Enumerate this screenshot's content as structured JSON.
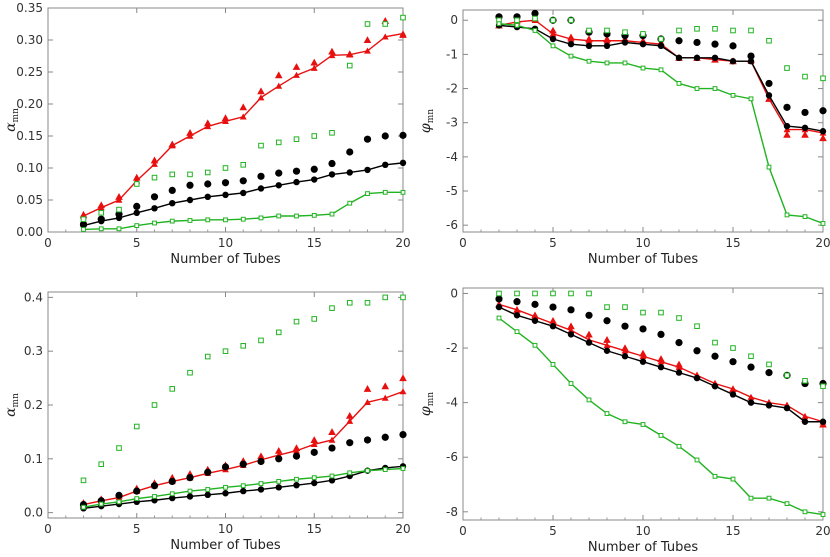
{
  "colors": {
    "red": "#e8100f",
    "black": "#000000",
    "green": "#22b322"
  },
  "chart_data": [
    {
      "type": "scatter",
      "panel": "top-left",
      "xlabel": "Number of Tubes",
      "ylabel_main": "α",
      "ylabel_sub": "mn",
      "xlim": [
        0,
        20
      ],
      "ylim": [
        0,
        0.35
      ],
      "xticks": [
        "0",
        "5",
        "10",
        "15",
        "20"
      ],
      "yticks": [
        "0.00",
        "0.05",
        "0.10",
        "0.15",
        "0.20",
        "0.25",
        "0.30",
        "0.35"
      ],
      "x": [
        2,
        3,
        4,
        5,
        6,
        7,
        8,
        9,
        10,
        11,
        12,
        13,
        14,
        15,
        16,
        17,
        18,
        19,
        20
      ],
      "series": [
        {
          "color": "red",
          "marker": "triangle",
          "kind": "points",
          "values": [
            0.027,
            0.042,
            0.055,
            0.085,
            0.112,
            0.137,
            0.155,
            0.17,
            0.178,
            0.195,
            0.22,
            0.245,
            0.258,
            0.265,
            0.282,
            0.278,
            0.3,
            0.33,
            0.308
          ]
        },
        {
          "color": "red",
          "marker": "triangle",
          "kind": "line",
          "values": [
            0.025,
            0.038,
            0.05,
            0.08,
            0.106,
            0.135,
            0.15,
            0.165,
            0.173,
            0.18,
            0.21,
            0.228,
            0.245,
            0.256,
            0.276,
            0.277,
            0.283,
            0.305,
            0.31
          ]
        },
        {
          "color": "black",
          "marker": "circle",
          "kind": "points",
          "values": [
            0.012,
            0.02,
            0.028,
            0.04,
            0.055,
            0.065,
            0.073,
            0.075,
            0.077,
            0.08,
            0.087,
            0.092,
            0.095,
            0.098,
            0.107,
            0.125,
            0.145,
            0.15,
            0.151
          ]
        },
        {
          "color": "black",
          "marker": "circle",
          "kind": "line",
          "values": [
            0.01,
            0.017,
            0.022,
            0.03,
            0.037,
            0.045,
            0.05,
            0.055,
            0.058,
            0.061,
            0.068,
            0.073,
            0.078,
            0.082,
            0.09,
            0.093,
            0.097,
            0.105,
            0.108
          ]
        },
        {
          "color": "green",
          "marker": "square",
          "kind": "points",
          "values": [
            0.02,
            0.03,
            0.035,
            0.075,
            0.085,
            0.09,
            0.09,
            0.093,
            0.1,
            0.105,
            0.135,
            0.14,
            0.145,
            0.15,
            0.155,
            0.26,
            0.325,
            0.325,
            0.335
          ]
        },
        {
          "color": "green",
          "marker": "square",
          "kind": "line",
          "values": [
            0.004,
            0.005,
            0.005,
            0.01,
            0.014,
            0.017,
            0.018,
            0.019,
            0.019,
            0.02,
            0.022,
            0.025,
            0.025,
            0.026,
            0.028,
            0.045,
            0.06,
            0.062,
            0.062
          ]
        }
      ]
    },
    {
      "type": "scatter",
      "panel": "top-right",
      "xlabel": "Number of Tubes",
      "ylabel_main": "φ",
      "ylabel_sub": "mn",
      "xlim": [
        0,
        20
      ],
      "ylim": [
        -6.2,
        0.3
      ],
      "xticks": [
        "0",
        "5",
        "10",
        "15",
        "20"
      ],
      "yticks": [
        "0",
        "-1",
        "-2",
        "-3",
        "-4",
        "-5",
        "-6"
      ],
      "x": [
        2,
        3,
        4,
        5,
        6,
        7,
        8,
        9,
        10,
        11,
        12,
        13,
        14,
        15,
        16,
        17,
        18,
        19,
        20
      ],
      "series": [
        {
          "color": "red",
          "marker": "triangle",
          "kind": "points",
          "values": [
            -0.15,
            0.0,
            0.05,
            -0.3,
            -0.5,
            -0.55,
            -0.55,
            -0.55,
            -0.6,
            -0.65,
            -1.1,
            -1.1,
            -1.15,
            -1.2,
            -1.15,
            -2.3,
            -3.35,
            -3.35,
            -3.45
          ]
        },
        {
          "color": "red",
          "marker": "triangle",
          "kind": "line",
          "values": [
            -0.15,
            -0.05,
            0.0,
            -0.4,
            -0.55,
            -0.6,
            -0.6,
            -0.6,
            -0.65,
            -0.7,
            -1.1,
            -1.1,
            -1.15,
            -1.2,
            -1.2,
            -2.3,
            -3.2,
            -3.2,
            -3.3
          ]
        },
        {
          "color": "black",
          "marker": "circle",
          "kind": "points",
          "values": [
            0.1,
            0.1,
            0.2,
            0.0,
            0.0,
            -0.35,
            -0.4,
            -0.45,
            -0.45,
            -0.55,
            -0.6,
            -0.65,
            -0.7,
            -0.75,
            -1.05,
            -1.85,
            -2.55,
            -2.7,
            -2.65
          ]
        },
        {
          "color": "black",
          "marker": "circle",
          "kind": "line",
          "values": [
            -0.15,
            -0.2,
            -0.25,
            -0.55,
            -0.7,
            -0.75,
            -0.75,
            -0.65,
            -0.7,
            -0.75,
            -1.1,
            -1.1,
            -1.1,
            -1.2,
            -1.2,
            -2.2,
            -3.1,
            -3.15,
            -3.25
          ]
        },
        {
          "color": "green",
          "marker": "square",
          "kind": "points",
          "values": [
            0.0,
            0.0,
            0.05,
            0.0,
            0.0,
            -0.3,
            -0.3,
            -0.35,
            -0.4,
            -0.55,
            -0.3,
            -0.25,
            -0.25,
            -0.3,
            -0.3,
            -0.6,
            -1.4,
            -1.65,
            -1.7
          ]
        },
        {
          "color": "green",
          "marker": "square",
          "kind": "line",
          "values": [
            -0.1,
            -0.15,
            -0.3,
            -0.75,
            -1.05,
            -1.2,
            -1.25,
            -1.25,
            -1.4,
            -1.45,
            -1.85,
            -2.0,
            -2.0,
            -2.2,
            -2.3,
            -4.3,
            -5.7,
            -5.75,
            -5.95
          ]
        }
      ]
    },
    {
      "type": "scatter",
      "panel": "bottom-left",
      "xlabel": "Number of Tubes",
      "ylabel_main": "α",
      "ylabel_sub": "mn",
      "xlim": [
        0,
        20
      ],
      "ylim": [
        -0.01,
        0.41
      ],
      "xticks": [
        "0",
        "5",
        "10",
        "15",
        "20"
      ],
      "yticks": [
        "0.0",
        "0.1",
        "0.2",
        "0.3",
        "0.4"
      ],
      "x": [
        2,
        3,
        4,
        5,
        6,
        7,
        8,
        9,
        10,
        11,
        12,
        13,
        14,
        15,
        16,
        17,
        18,
        19,
        20
      ],
      "series": [
        {
          "color": "red",
          "marker": "triangle",
          "kind": "points",
          "values": [
            0.018,
            0.025,
            0.032,
            0.045,
            0.055,
            0.065,
            0.072,
            0.08,
            0.088,
            0.096,
            0.105,
            0.115,
            0.12,
            0.135,
            0.15,
            0.18,
            0.23,
            0.235,
            0.25
          ]
        },
        {
          "color": "red",
          "marker": "triangle",
          "kind": "line",
          "values": [
            0.015,
            0.022,
            0.028,
            0.04,
            0.05,
            0.058,
            0.065,
            0.073,
            0.08,
            0.088,
            0.098,
            0.107,
            0.115,
            0.127,
            0.135,
            0.17,
            0.205,
            0.213,
            0.225
          ]
        },
        {
          "color": "black",
          "marker": "circle",
          "kind": "points",
          "values": [
            0.015,
            0.022,
            0.032,
            0.04,
            0.05,
            0.058,
            0.065,
            0.075,
            0.085,
            0.09,
            0.095,
            0.1,
            0.105,
            0.112,
            0.12,
            0.13,
            0.135,
            0.14,
            0.145
          ]
        },
        {
          "color": "black",
          "marker": "circle",
          "kind": "line",
          "values": [
            0.008,
            0.012,
            0.016,
            0.02,
            0.023,
            0.027,
            0.03,
            0.033,
            0.036,
            0.04,
            0.043,
            0.047,
            0.051,
            0.055,
            0.06,
            0.068,
            0.078,
            0.083,
            0.086
          ]
        },
        {
          "color": "green",
          "marker": "square",
          "kind": "points",
          "values": [
            0.06,
            0.09,
            0.12,
            0.16,
            0.2,
            0.23,
            0.26,
            0.29,
            0.3,
            0.31,
            0.32,
            0.335,
            0.355,
            0.36,
            0.38,
            0.39,
            0.39,
            0.4,
            0.4
          ]
        },
        {
          "color": "green",
          "marker": "square",
          "kind": "line",
          "values": [
            0.01,
            0.016,
            0.02,
            0.026,
            0.03,
            0.035,
            0.04,
            0.043,
            0.047,
            0.05,
            0.054,
            0.058,
            0.062,
            0.065,
            0.068,
            0.074,
            0.078,
            0.08,
            0.082
          ]
        }
      ]
    },
    {
      "type": "scatter",
      "panel": "bottom-right",
      "xlabel": "Number of Tubes",
      "ylabel_main": "φ",
      "ylabel_sub": "mn",
      "xlim": [
        0,
        20
      ],
      "ylim": [
        -8.3,
        0.2
      ],
      "xticks": [
        "0",
        "5",
        "10",
        "15",
        "20"
      ],
      "yticks": [
        "0",
        "-2",
        "-4",
        "-6",
        "-8"
      ],
      "x": [
        2,
        3,
        4,
        5,
        6,
        7,
        8,
        9,
        10,
        11,
        12,
        13,
        14,
        15,
        16,
        17,
        18,
        19,
        20
      ],
      "series": [
        {
          "color": "red",
          "marker": "triangle",
          "kind": "points",
          "values": [
            -0.4,
            -0.6,
            -0.8,
            -1.0,
            -1.2,
            -1.5,
            -1.7,
            -2.0,
            -2.2,
            -2.4,
            -2.6,
            -3.0,
            -3.3,
            -3.5,
            -3.9,
            -4.0,
            -4.1,
            -4.6,
            -4.8
          ]
        },
        {
          "color": "red",
          "marker": "triangle",
          "kind": "line",
          "values": [
            -0.4,
            -0.6,
            -0.85,
            -1.1,
            -1.35,
            -1.7,
            -1.9,
            -2.1,
            -2.3,
            -2.5,
            -2.7,
            -3.0,
            -3.3,
            -3.5,
            -3.8,
            -4.0,
            -4.1,
            -4.5,
            -4.7
          ]
        },
        {
          "color": "black",
          "marker": "circle",
          "kind": "points",
          "values": [
            -0.2,
            -0.3,
            -0.4,
            -0.5,
            -0.6,
            -0.8,
            -1.0,
            -1.2,
            -1.3,
            -1.5,
            -1.8,
            -2.1,
            -2.3,
            -2.5,
            -2.7,
            -2.9,
            -3.0,
            -3.3,
            -3.3
          ]
        },
        {
          "color": "black",
          "marker": "circle",
          "kind": "line",
          "values": [
            -0.5,
            -0.8,
            -1.0,
            -1.2,
            -1.5,
            -1.8,
            -2.1,
            -2.3,
            -2.5,
            -2.7,
            -2.9,
            -3.1,
            -3.4,
            -3.7,
            -4.0,
            -4.1,
            -4.2,
            -4.7,
            -4.7
          ]
        },
        {
          "color": "green",
          "marker": "square",
          "kind": "points",
          "values": [
            0.0,
            0.0,
            0.0,
            0.0,
            0.0,
            0.0,
            -0.5,
            -0.5,
            -0.7,
            -0.7,
            -0.9,
            -1.2,
            -1.8,
            -2.0,
            -2.3,
            -2.6,
            -3.0,
            -3.2,
            -3.4
          ]
        },
        {
          "color": "green",
          "marker": "square",
          "kind": "line",
          "values": [
            -0.9,
            -1.4,
            -1.9,
            -2.6,
            -3.3,
            -3.9,
            -4.4,
            -4.7,
            -4.8,
            -5.2,
            -5.6,
            -6.1,
            -6.7,
            -6.8,
            -7.5,
            -7.5,
            -7.7,
            -8.0,
            -8.1
          ]
        }
      ]
    }
  ]
}
